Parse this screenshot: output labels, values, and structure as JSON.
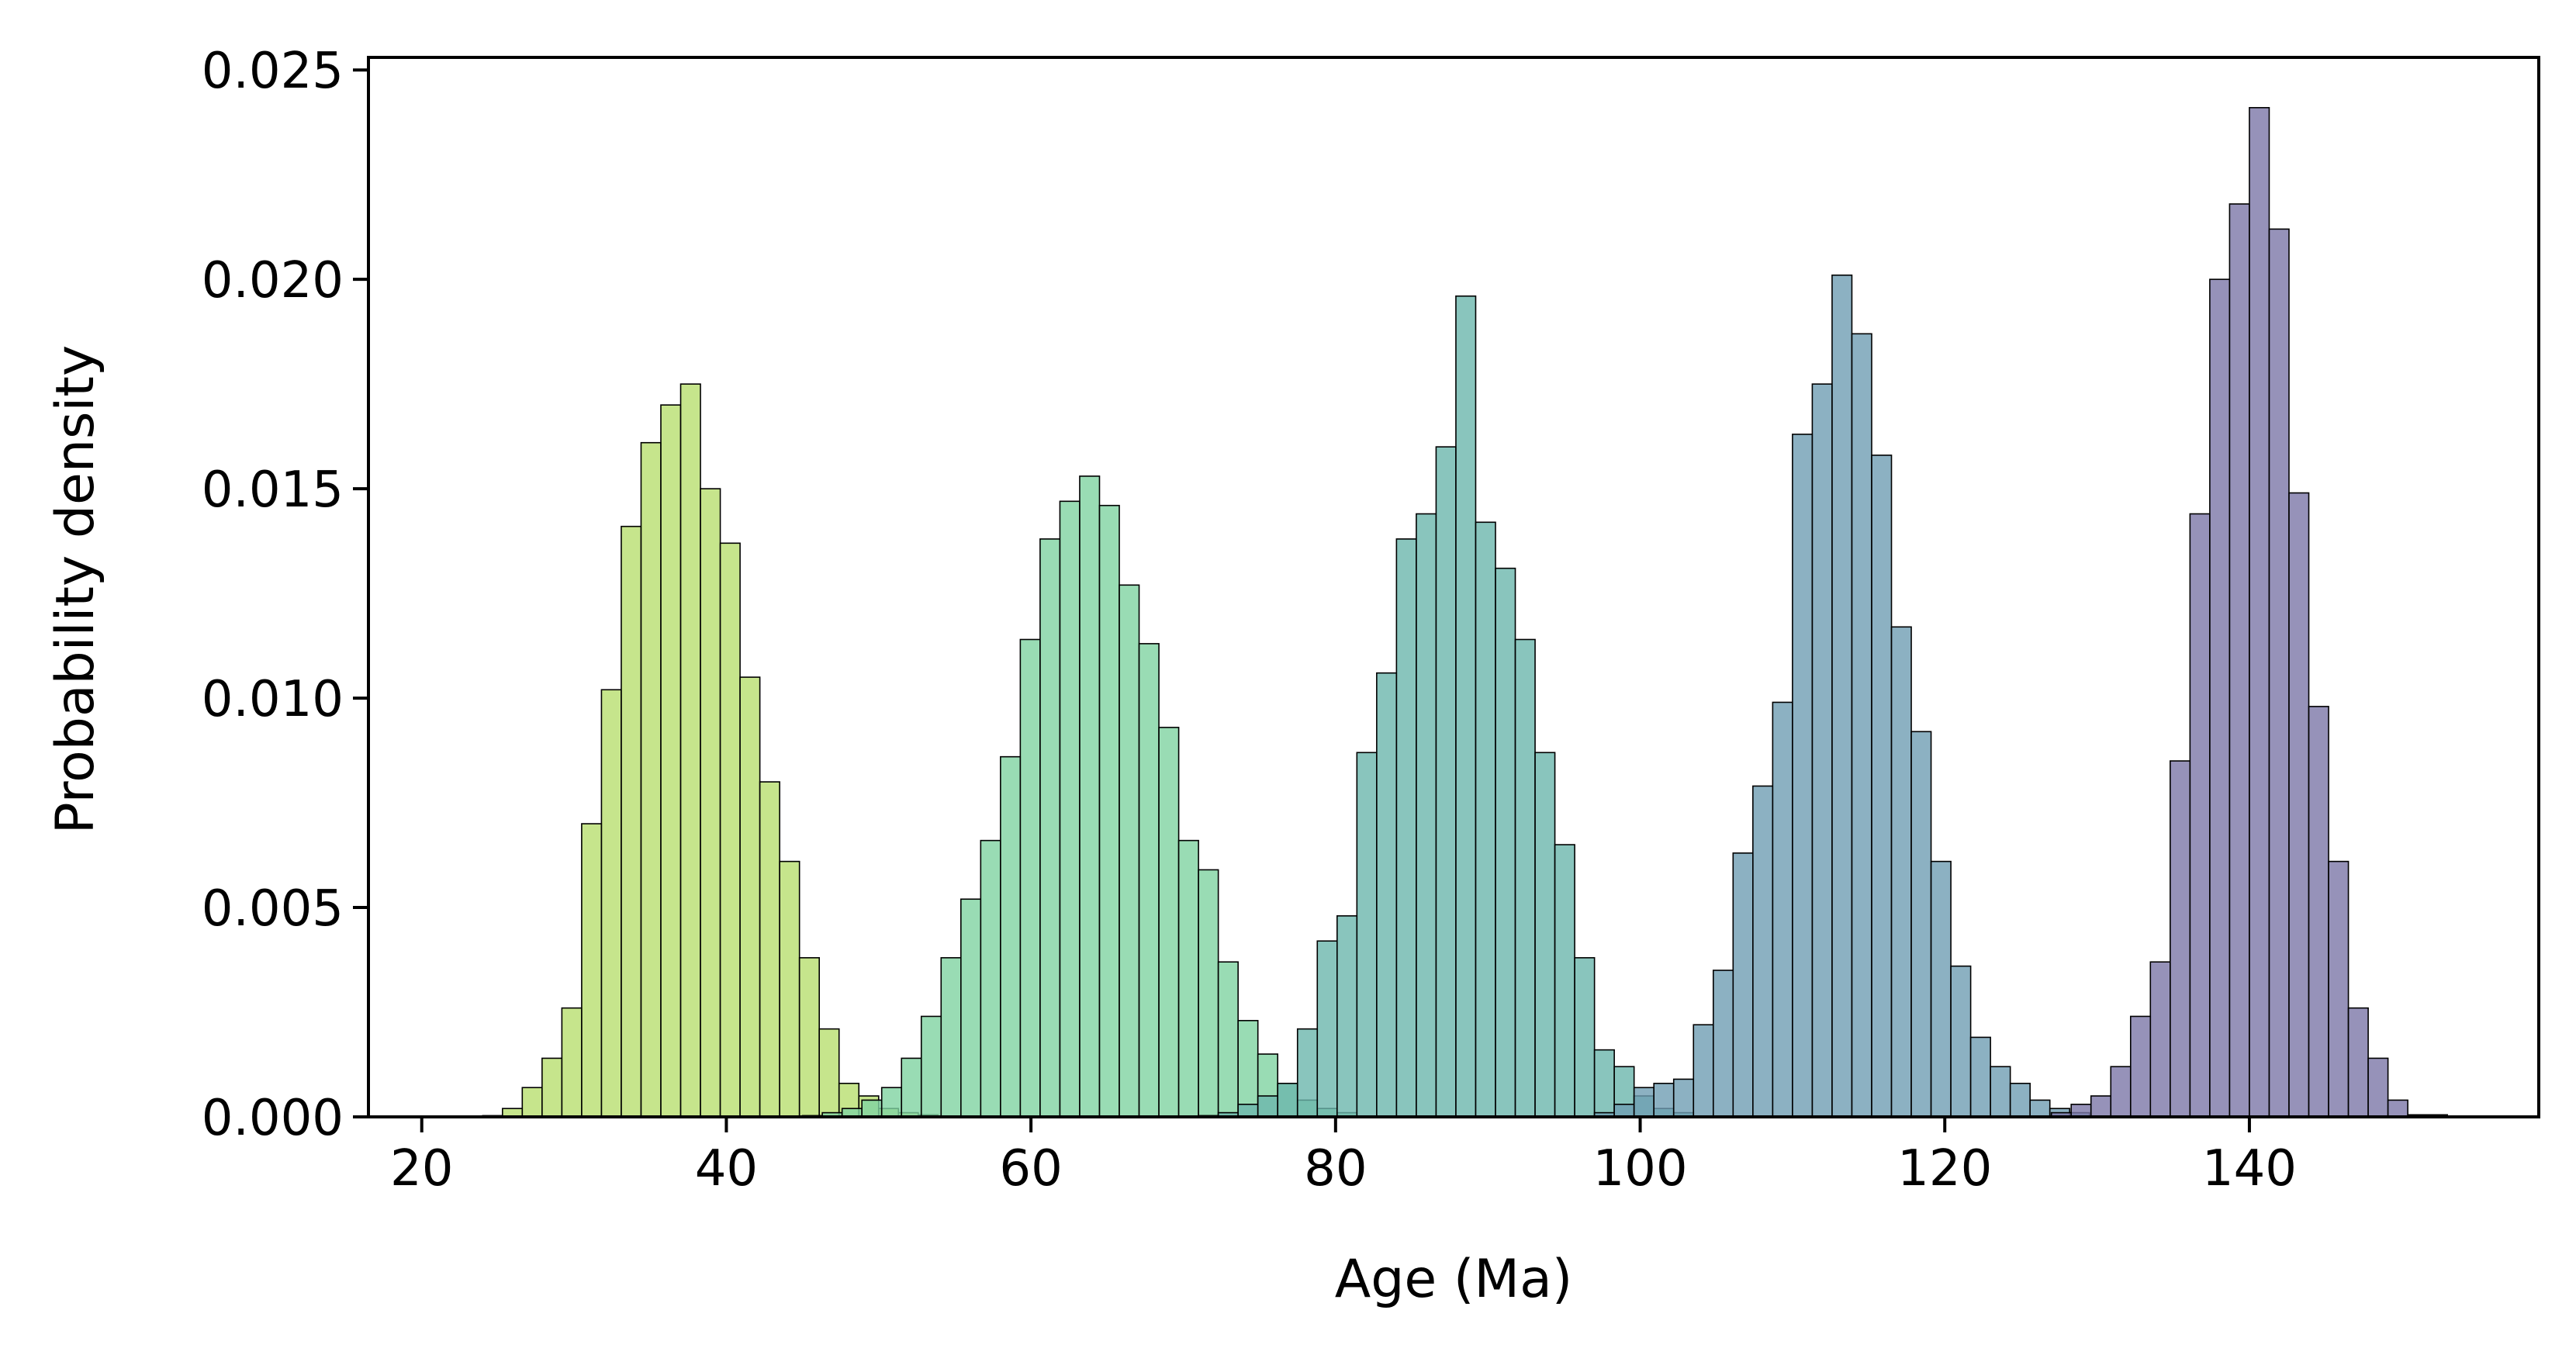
{
  "chart_data": {
    "type": "bar",
    "subtype": "overlapping-histogram",
    "xlabel": "Age (Ma)",
    "ylabel": "Probability density",
    "xlim": [
      16.5,
      159
    ],
    "ylim": [
      0,
      0.0253
    ],
    "xticks": [
      20,
      40,
      60,
      80,
      100,
      120,
      140
    ],
    "yticks": [
      0.0,
      0.005,
      0.01,
      0.015,
      0.02,
      0.025
    ],
    "ytick_labels": [
      "0.000",
      "0.005",
      "0.010",
      "0.015",
      "0.020",
      "0.025"
    ],
    "grid": false,
    "legend": "none",
    "series": [
      {
        "color": "#b8de6f",
        "bin_start": 24,
        "bin_width": 1.3,
        "values": [
          3e-05,
          0.0002,
          0.0007,
          0.0014,
          0.0026,
          0.007,
          0.0102,
          0.0141,
          0.0161,
          0.017,
          0.0175,
          0.015,
          0.0137,
          0.0105,
          0.008,
          0.0061,
          0.0038,
          0.0021,
          0.0008,
          0.0005,
          0.0002,
          0.0001,
          5e-05
        ]
      },
      {
        "color": "#7fd3a1",
        "bin_start": 45,
        "bin_width": 1.3,
        "values": [
          3e-05,
          0.0001,
          0.0002,
          0.0004,
          0.0007,
          0.0014,
          0.0024,
          0.0038,
          0.0052,
          0.0066,
          0.0086,
          0.0114,
          0.0138,
          0.0147,
          0.0153,
          0.0146,
          0.0127,
          0.0113,
          0.0093,
          0.0066,
          0.0059,
          0.0037,
          0.0023,
          0.0015,
          0.0008,
          0.0004,
          0.0002,
          0.0001
        ]
      },
      {
        "color": "#6bb7ac",
        "bin_start": 71,
        "bin_width": 1.3,
        "values": [
          3e-05,
          0.0001,
          0.0003,
          0.0005,
          0.0008,
          0.0021,
          0.0042,
          0.0048,
          0.0087,
          0.0106,
          0.0138,
          0.0144,
          0.016,
          0.0196,
          0.0142,
          0.0131,
          0.0114,
          0.0087,
          0.0065,
          0.0038,
          0.0016,
          0.0012,
          0.0005,
          0.0002,
          0.0001
        ]
      },
      {
        "color": "#6f9db3",
        "bin_start": 97,
        "bin_width": 1.3,
        "values": [
          0.0001,
          0.0003,
          0.0007,
          0.0008,
          0.0009,
          0.0022,
          0.0035,
          0.0063,
          0.0079,
          0.0099,
          0.0163,
          0.0175,
          0.0201,
          0.0187,
          0.0158,
          0.0117,
          0.0092,
          0.0061,
          0.0036,
          0.0019,
          0.0012,
          0.0008,
          0.0004,
          0.0002,
          0.0001
        ]
      },
      {
        "color": "#7c77a8",
        "bin_start": 127,
        "bin_width": 1.3,
        "values": [
          0.0001,
          0.0003,
          0.0005,
          0.0012,
          0.0024,
          0.0037,
          0.0085,
          0.0144,
          0.02,
          0.0218,
          0.0241,
          0.0212,
          0.0149,
          0.0098,
          0.0061,
          0.0026,
          0.0014,
          0.0004,
          5e-05,
          5e-05
        ]
      }
    ]
  }
}
